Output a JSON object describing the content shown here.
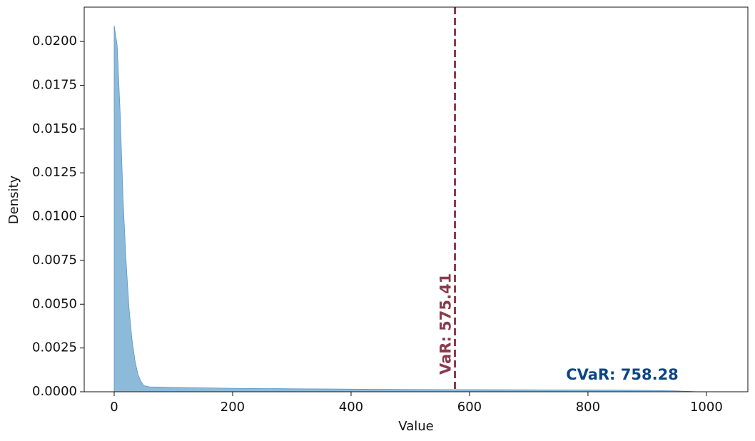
{
  "chart_data": {
    "type": "area",
    "x_label": "Value",
    "y_label": "Density",
    "x": [
      0,
      5,
      10,
      15,
      20,
      25,
      30,
      35,
      40,
      45,
      50,
      60,
      100,
      200,
      300,
      400,
      500,
      600,
      700,
      800,
      900,
      950,
      980,
      1000
    ],
    "values": [
      0.0209,
      0.0198,
      0.016,
      0.011,
      0.0075,
      0.0048,
      0.003,
      0.0018,
      0.001,
      0.0006,
      0.00035,
      0.00028,
      0.00025,
      0.0002,
      0.00017,
      0.00015,
      0.00013,
      0.00012,
      0.00011,
      0.0001,
      8e-05,
      5e-05,
      1e-05,
      0
    ],
    "color": "#8dbad9",
    "edge_color": "#5b97c4",
    "xlim": [
      -50.6,
      1070
    ],
    "ylim": [
      0,
      0.02196
    ],
    "xticks": [
      0,
      200,
      400,
      600,
      800,
      1000
    ],
    "yticks": [
      {
        "value": 0,
        "label": "0.0000"
      },
      {
        "value": 0.0025,
        "label": "0.0025"
      },
      {
        "value": 0.005,
        "label": "0.0050"
      },
      {
        "value": 0.0075,
        "label": "0.0075"
      },
      {
        "value": 0.01,
        "label": "0.0100"
      },
      {
        "value": 0.0125,
        "label": "0.0125"
      },
      {
        "value": 0.015,
        "label": "0.0150"
      },
      {
        "value": 0.0175,
        "label": "0.0175"
      },
      {
        "value": 0.02,
        "label": "0.0200"
      }
    ],
    "var_line": {
      "x": 575.41,
      "label": "VaR: 575.41",
      "color": "#8b3a4e"
    },
    "cvar_label": {
      "text": "CVaR: 758.28",
      "color": "#0b4585"
    }
  }
}
